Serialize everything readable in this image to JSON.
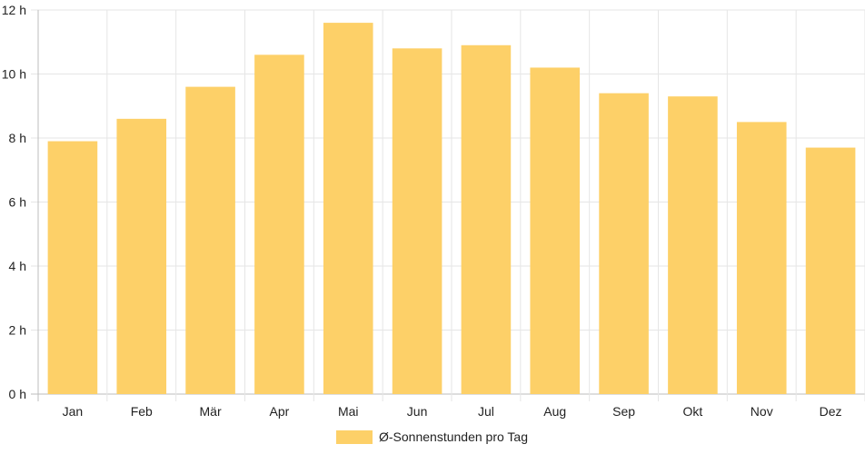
{
  "chart_data": {
    "type": "bar",
    "categories": [
      "Jan",
      "Feb",
      "Mär",
      "Apr",
      "Mai",
      "Jun",
      "Jul",
      "Aug",
      "Sep",
      "Okt",
      "Nov",
      "Dez"
    ],
    "series": [
      {
        "name": "Ø-Sonnenstunden pro Tag",
        "values": [
          7.9,
          8.6,
          9.6,
          10.6,
          11.6,
          10.8,
          10.9,
          10.2,
          9.4,
          9.3,
          8.5,
          7.7
        ],
        "color": "#fdd068"
      }
    ],
    "y_ticks": [
      "0 h",
      "2 h",
      "4 h",
      "6 h",
      "8 h",
      "10 h",
      "12 h"
    ],
    "ylim": [
      0,
      12
    ],
    "grid": true,
    "legend_position": "bottom"
  }
}
